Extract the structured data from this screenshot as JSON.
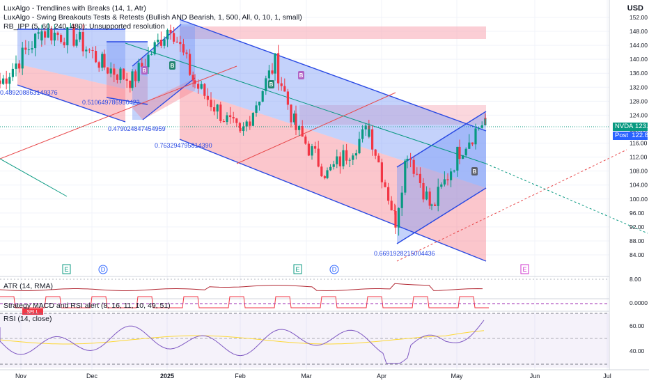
{
  "legends": {
    "l1": "LuxAlgo - Trendlines with Breaks (14, 1, Atr)",
    "l2": "LuxAlgo - Swing Breakouts Tests & Retests (Bullish AND Bearish, 1, 500, All, 0, 10, 1, small)",
    "l3": "RB_IPP (5, 60, 240, 480): Unsupported resolution"
  },
  "currency": "USD",
  "ticker": {
    "symbol": "NVDA",
    "last": "123.00",
    "post_label": "Post",
    "post": "122.86",
    "color_last": "#089981",
    "color_post": "#2962ff"
  },
  "price_axis": {
    "min": 83,
    "max": 155,
    "ticks": [
      "152.00",
      "148.00",
      "144.00",
      "140.00",
      "136.00",
      "132.00",
      "128.00",
      "124.00",
      "120.00",
      "116.00",
      "112.00",
      "108.00",
      "104.00",
      "100.00",
      "96.00",
      "92.00",
      "88.00",
      "84.00"
    ]
  },
  "time_axis": [
    "Nov",
    "Dec",
    "2025",
    "Feb",
    "Mar",
    "Apr",
    "May",
    "Jun",
    "Jul"
  ],
  "channel_values": [
    "0.489208863149376",
    "0.510649786950422",
    "0.479024847454959",
    "0.763294795814390",
    "0.6691928215004436"
  ],
  "events": [
    {
      "text": "E",
      "kind": "earnings"
    },
    {
      "text": "D",
      "kind": "dividend"
    },
    {
      "text": "E",
      "kind": "earnings"
    },
    {
      "text": "D",
      "kind": "dividend"
    },
    {
      "text": "E",
      "kind": "earnings-upcoming"
    }
  ],
  "signals": {
    "bear": "B",
    "bull": "B",
    "dark": "B"
  },
  "atr": {
    "title": "ATR (14, RMA)",
    "ticks": [
      "8.00",
      "0.0000"
    ]
  },
  "macd": {
    "title": "Strategy MACD and RSI alert (8, 16, 11, 10, 49, 51)",
    "tag": "SELL"
  },
  "rsi": {
    "title": "RSI (14, close)",
    "ticks": [
      "60.00",
      "40.00"
    ]
  },
  "chart_data": {
    "type": "candlestick",
    "title": "",
    "ylabel": "USD",
    "ylim": [
      83,
      155
    ],
    "x": [
      "Nov",
      "Dec",
      "2025",
      "Feb",
      "Mar",
      "Apr",
      "May",
      "Jun",
      "Jul"
    ],
    "approx_close_path": [
      {
        "date": "Oct 31",
        "close": 133
      },
      {
        "date": "Nov 7",
        "close": 148
      },
      {
        "date": "Nov 21",
        "close": 146
      },
      {
        "date": "Dec 3",
        "close": 138
      },
      {
        "date": "Dec 19",
        "close": 134
      },
      {
        "date": "Jan 6",
        "close": 150
      },
      {
        "date": "Jan 13",
        "close": 133
      },
      {
        "date": "Jan 27",
        "close": 118
      },
      {
        "date": "Feb 18",
        "close": 139
      },
      {
        "date": "Feb 27",
        "close": 120
      },
      {
        "date": "Mar 10",
        "close": 107
      },
      {
        "date": "Mar 25",
        "close": 120
      },
      {
        "date": "Apr 4",
        "close": 94
      },
      {
        "date": "Apr 9",
        "close": 114
      },
      {
        "date": "Apr 21",
        "close": 97
      },
      {
        "date": "May 2",
        "close": 114
      },
      {
        "date": "May 12",
        "close": 123
      }
    ],
    "last_price": 123.0,
    "post_market": 122.86,
    "resistance_zones": [
      [
        146.5,
        150.2
      ],
      [
        124,
        129
      ]
    ],
    "indicators": [
      "ATR (14, RMA)",
      "Strategy MACD and RSI alert (8, 16, 11, 10, 49, 51)",
      "RSI (14, close)"
    ]
  }
}
